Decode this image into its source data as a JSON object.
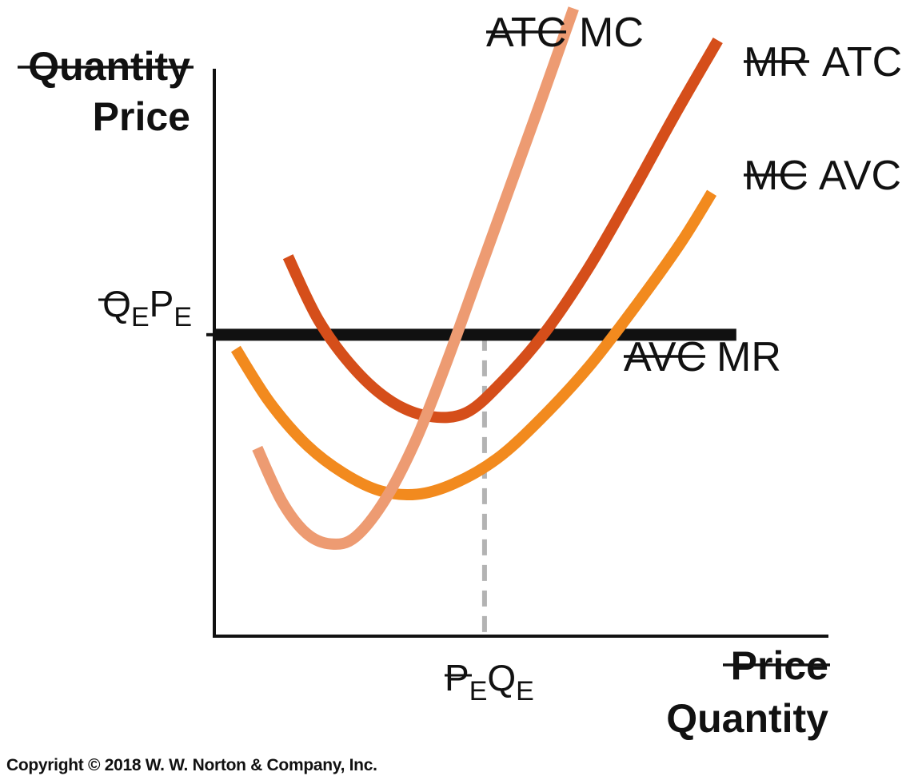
{
  "chart_data": {
    "type": "line",
    "yaxis": {
      "label_struck": "Quantity",
      "label": "Price"
    },
    "xaxis": {
      "label_struck": "Price",
      "label": "Quantity"
    },
    "equilibrium": {
      "price": 8.5,
      "quantity": 4.4,
      "price_label_struck": "Q",
      "price_label": "P",
      "quantity_label_struck": "P",
      "quantity_label": "Q",
      "subscript": "E"
    },
    "xlim": [
      0,
      10
    ],
    "ylim": [
      0,
      16
    ],
    "grid": false,
    "series": [
      {
        "key": "mc",
        "name": "MC",
        "name_struck": "ATC",
        "color": "#ED9B72",
        "x": [
          0.7,
          1.1,
          1.5,
          1.9,
          2.3,
          2.8,
          3.3,
          3.8,
          4.3,
          4.8,
          5.3,
          5.85
        ],
        "y": [
          5.3,
          3.8,
          2.9,
          2.6,
          2.8,
          3.9,
          5.6,
          7.8,
          10.2,
          12.6,
          15.0,
          17.7
        ]
      },
      {
        "key": "atc",
        "name": "ATC",
        "name_struck": "MR",
        "color": "#D54E1A",
        "x": [
          1.2,
          1.7,
          2.3,
          2.9,
          3.5,
          4.1,
          4.7,
          5.4,
          6.1,
          6.8,
          7.5,
          8.2
        ],
        "y": [
          10.7,
          8.9,
          7.5,
          6.6,
          6.2,
          6.3,
          7.2,
          8.6,
          10.4,
          12.5,
          14.7,
          16.8
        ]
      },
      {
        "key": "avc",
        "name": "AVC",
        "name_struck": "MC",
        "color": "#F28A1E",
        "x": [
          0.35,
          0.9,
          1.5,
          2.1,
          2.7,
          3.3,
          3.9,
          4.6,
          5.3,
          6.1,
          6.9,
          7.6,
          8.1
        ],
        "y": [
          8.1,
          6.6,
          5.4,
          4.6,
          4.1,
          4.0,
          4.3,
          5.0,
          6.1,
          7.6,
          9.4,
          11.1,
          12.5
        ]
      },
      {
        "key": "mr",
        "name": "MR",
        "name_struck": "AVC",
        "color": "#111111",
        "x": [
          0,
          8.5
        ],
        "y": [
          8.5,
          8.5
        ]
      }
    ]
  },
  "copyright": "Copyright © 2018 W. W. Norton & Company, Inc."
}
